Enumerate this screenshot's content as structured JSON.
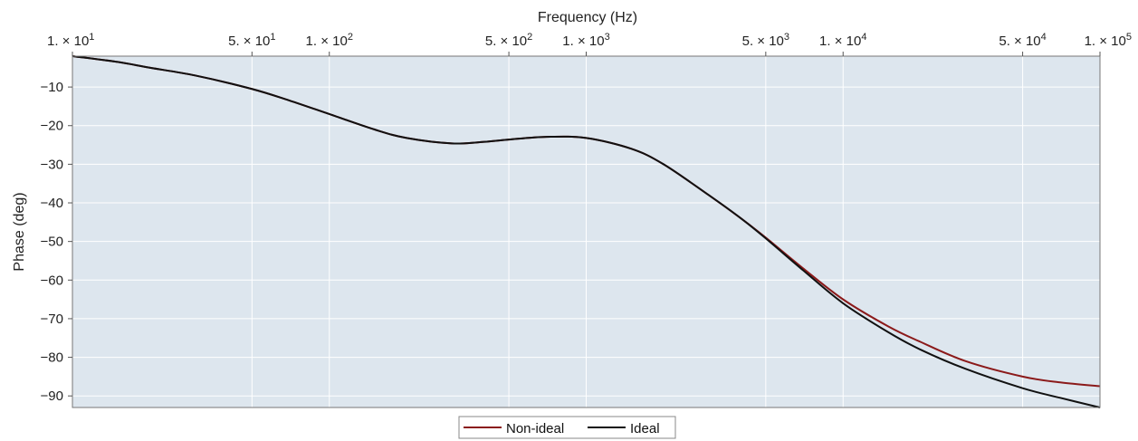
{
  "chart_data": {
    "type": "line",
    "xlabel": "Frequency (Hz)",
    "ylabel": "Phase (deg)",
    "x_scale": "log",
    "xlim": [
      10,
      100000
    ],
    "ylim": [
      -93,
      -2
    ],
    "grid": true,
    "legend_position": "bottom-center",
    "x_ticks": [
      {
        "value": 10,
        "mantissa": "1.",
        "exponent": "1"
      },
      {
        "value": 50,
        "mantissa": "5.",
        "exponent": "1"
      },
      {
        "value": 100,
        "mantissa": "1.",
        "exponent": "2"
      },
      {
        "value": 500,
        "mantissa": "5.",
        "exponent": "2"
      },
      {
        "value": 1000,
        "mantissa": "1.",
        "exponent": "3"
      },
      {
        "value": 5000,
        "mantissa": "5.",
        "exponent": "3"
      },
      {
        "value": 10000,
        "mantissa": "1.",
        "exponent": "4"
      },
      {
        "value": 50000,
        "mantissa": "5.",
        "exponent": "4"
      },
      {
        "value": 100000,
        "mantissa": "1.",
        "exponent": "5"
      }
    ],
    "y_ticks": [
      {
        "value": -10,
        "label": "−10"
      },
      {
        "value": -20,
        "label": "−20"
      },
      {
        "value": -30,
        "label": "−30"
      },
      {
        "value": -40,
        "label": "−40"
      },
      {
        "value": -50,
        "label": "−50"
      },
      {
        "value": -60,
        "label": "−60"
      },
      {
        "value": -70,
        "label": "−70"
      },
      {
        "value": -80,
        "label": "−80"
      },
      {
        "value": -90,
        "label": "−90"
      }
    ],
    "series": [
      {
        "name": "Non-ideal",
        "color": "#8b1a1a",
        "x": [
          10,
          15,
          20,
          30,
          50,
          70,
          100,
          150,
          200,
          300,
          400,
          500,
          700,
          1000,
          1500,
          2000,
          3000,
          4000,
          5000,
          7000,
          10000,
          15000,
          20000,
          30000,
          50000,
          70000,
          100000
        ],
        "y": [
          -2,
          -3.5,
          -5,
          -7,
          -10.5,
          -13.5,
          -17,
          -21,
          -23.2,
          -24.6,
          -24.2,
          -23.6,
          -22.9,
          -23.2,
          -26,
          -30,
          -38,
          -44,
          -49,
          -57,
          -65,
          -72,
          -76,
          -81,
          -85,
          -86.5,
          -87.5
        ]
      },
      {
        "name": "Ideal",
        "color": "#111111",
        "x": [
          10,
          15,
          20,
          30,
          50,
          70,
          100,
          150,
          200,
          300,
          400,
          500,
          700,
          1000,
          1500,
          2000,
          3000,
          4000,
          5000,
          7000,
          10000,
          15000,
          20000,
          30000,
          50000,
          70000,
          100000
        ],
        "y": [
          -2,
          -3.5,
          -5,
          -7,
          -10.5,
          -13.5,
          -17,
          -21,
          -23.2,
          -24.6,
          -24.2,
          -23.6,
          -22.9,
          -23.2,
          -26,
          -30,
          -38,
          -44,
          -49.2,
          -57.5,
          -66,
          -73.5,
          -78,
          -83,
          -88,
          -90.5,
          -93
        ]
      }
    ]
  }
}
